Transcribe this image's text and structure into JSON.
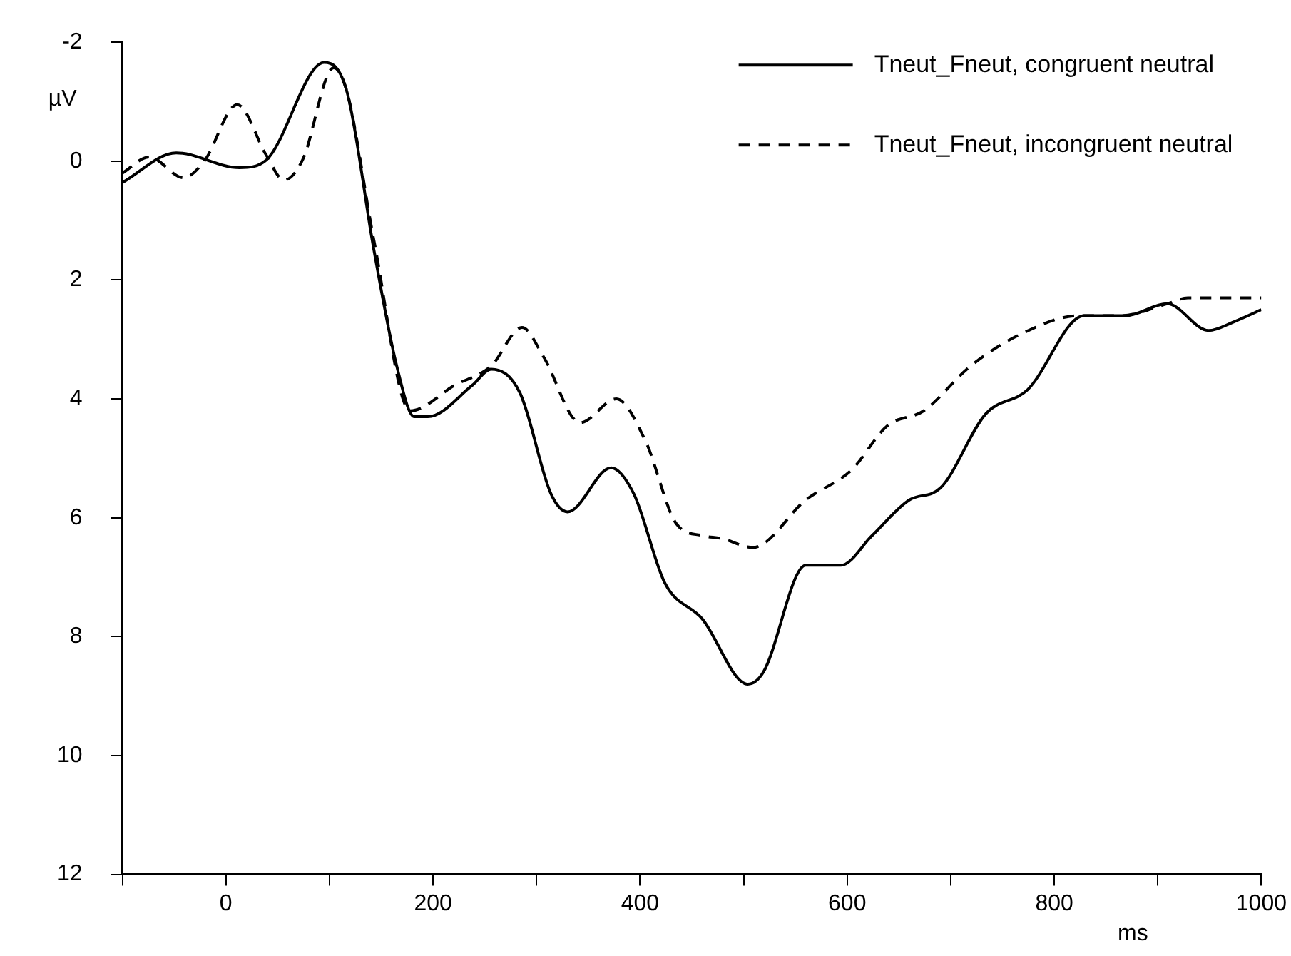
{
  "chart_data": {
    "type": "line",
    "xlabel": "ms",
    "ylabel": "µV",
    "xlim": [
      -100,
      1000
    ],
    "xticks": [
      {
        "value": -100,
        "label": null
      },
      0,
      {
        "value": 100,
        "label": null
      },
      200,
      {
        "value": 300,
        "label": null
      },
      400,
      {
        "value": 500,
        "label": null
      },
      600,
      {
        "value": 700,
        "label": null
      },
      800,
      {
        "value": 900,
        "label": null
      },
      1000
    ],
    "ylim": [
      12,
      -2
    ],
    "yticks": [
      -2,
      0,
      2,
      4,
      6,
      8,
      10,
      12
    ],
    "grid": false,
    "legend": "top right",
    "marker": "none",
    "series": [
      {
        "name": "Tneut_Fneut, congruent neutral",
        "color": "#000000",
        "line_style": "solid",
        "x": [
          -100,
          -48,
          13,
          39,
          95,
          117,
          143,
          165,
          182,
          195,
          238,
          256,
          284,
          314,
          330,
          372,
          394,
          424,
          460,
          504,
          519,
          560,
          594,
          624,
          660,
          690,
          734,
          774,
          829,
          869,
          909,
          949,
          974,
          1000
        ],
        "values": [
          0.36,
          -0.14,
          0.11,
          -0.02,
          -1.66,
          -1.16,
          1.5,
          3.45,
          4.3,
          4.3,
          3.77,
          3.5,
          3.9,
          5.6,
          5.9,
          5.16,
          5.6,
          7.1,
          7.7,
          8.8,
          8.6,
          6.8,
          6.8,
          6.3,
          5.7,
          5.5,
          4.25,
          3.85,
          2.6,
          2.6,
          2.4,
          2.85,
          2.7,
          2.5
        ]
      },
      {
        "name": "Tneut_Fneut, incongruent neutral",
        "color": "#000000",
        "line_style": "dashed",
        "x": [
          -100,
          -74,
          -41,
          -21,
          11,
          39,
          56,
          74,
          104,
          117,
          143,
          178,
          221,
          256,
          286,
          307,
          342,
          377,
          405,
          435,
          460,
          479,
          509,
          560,
          604,
          639,
          674,
          719,
          769,
          824,
          864,
          909,
          929,
          974,
          1000
        ],
        "values": [
          0.2,
          -0.07,
          0.28,
          0.0,
          -0.95,
          -0.1,
          0.32,
          -0.02,
          -1.57,
          -1.16,
          1.34,
          4.2,
          3.77,
          3.45,
          2.8,
          3.3,
          4.4,
          4.0,
          4.7,
          6.1,
          6.3,
          6.35,
          6.5,
          5.7,
          5.2,
          4.45,
          4.2,
          3.45,
          2.9,
          2.6,
          2.6,
          2.4,
          2.3,
          2.3,
          2.3
        ]
      }
    ]
  }
}
